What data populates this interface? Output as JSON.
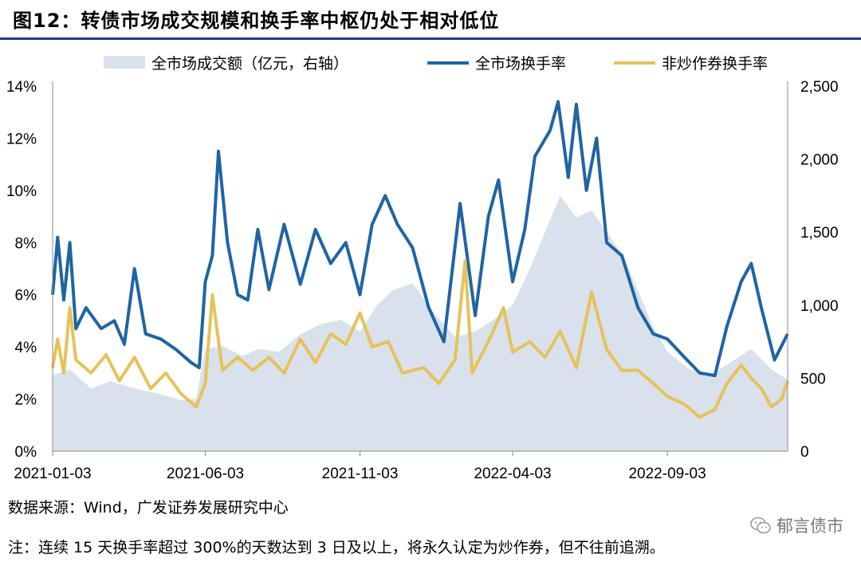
{
  "header": {
    "title": "图12：转债市场成交规模和换手率中枢仍处于相对低位"
  },
  "footer": {
    "source": "数据来源：Wind，广发证券发展研究中心",
    "note": "注：连续 15 天换手率超过 300%的天数达到 3 日及以上，将永久认定为炒作券，但不往前追溯。",
    "watermark": "郁言债市"
  },
  "colors": {
    "area": "#d9e1ec",
    "total": "#1f64a4",
    "nonspec": "#e6c25a"
  },
  "chart_data": {
    "type": "line",
    "x_ticks": [
      "2021-01-03",
      "2021-06-03",
      "2021-11-03",
      "2022-04-03",
      "2022-09-03"
    ],
    "x_range": [
      "2021-01-03",
      "2022-12-31"
    ],
    "y_left": {
      "ticks": [
        "0%",
        "2%",
        "4%",
        "6%",
        "8%",
        "10%",
        "12%",
        "14%"
      ],
      "range": [
        0,
        14
      ],
      "unit": "%"
    },
    "y_right": {
      "ticks": [
        "0",
        "500",
        "1,000",
        "1,500",
        "2,000",
        "2,500"
      ],
      "range": [
        0,
        2500
      ]
    },
    "legend": [
      "全市场成交额（亿元，右轴）",
      "全市场换手率",
      "非炒作券换手率"
    ],
    "series": [
      {
        "name": "全市场成交额（亿元，右轴）",
        "type": "area",
        "axis": "right",
        "points": [
          [
            "2021-01-03",
            520
          ],
          [
            "2021-01-20",
            560
          ],
          [
            "2021-02-10",
            430
          ],
          [
            "2021-03-01",
            480
          ],
          [
            "2021-03-25",
            430
          ],
          [
            "2021-04-20",
            390
          ],
          [
            "2021-05-10",
            350
          ],
          [
            "2021-05-25",
            360
          ],
          [
            "2021-06-03",
            700
          ],
          [
            "2021-06-20",
            720
          ],
          [
            "2021-07-10",
            650
          ],
          [
            "2021-07-25",
            700
          ],
          [
            "2021-08-15",
            680
          ],
          [
            "2021-09-05",
            800
          ],
          [
            "2021-09-25",
            870
          ],
          [
            "2021-10-15",
            900
          ],
          [
            "2021-11-03",
            820
          ],
          [
            "2021-11-20",
            1000
          ],
          [
            "2021-12-05",
            1100
          ],
          [
            "2021-12-25",
            1150
          ],
          [
            "2022-01-15",
            950
          ],
          [
            "2022-02-05",
            780
          ],
          [
            "2022-02-25",
            820
          ],
          [
            "2022-03-15",
            900
          ],
          [
            "2022-04-03",
            1000
          ],
          [
            "2022-04-20",
            1250
          ],
          [
            "2022-05-05",
            1500
          ],
          [
            "2022-05-20",
            1750
          ],
          [
            "2022-06-05",
            1600
          ],
          [
            "2022-06-20",
            1650
          ],
          [
            "2022-07-05",
            1500
          ],
          [
            "2022-07-20",
            1350
          ],
          [
            "2022-08-05",
            1100
          ],
          [
            "2022-08-20",
            850
          ],
          [
            "2022-09-03",
            680
          ],
          [
            "2022-09-25",
            560
          ],
          [
            "2022-10-15",
            520
          ],
          [
            "2022-11-05",
            610
          ],
          [
            "2022-11-25",
            700
          ],
          [
            "2022-12-15",
            560
          ],
          [
            "2022-12-31",
            490
          ]
        ]
      },
      {
        "name": "全市场换手率",
        "type": "line",
        "axis": "left",
        "points": [
          [
            "2021-01-03",
            6.0
          ],
          [
            "2021-01-08",
            8.2
          ],
          [
            "2021-01-14",
            5.8
          ],
          [
            "2021-01-20",
            8.0
          ],
          [
            "2021-01-26",
            4.7
          ],
          [
            "2021-02-05",
            5.5
          ],
          [
            "2021-02-20",
            4.7
          ],
          [
            "2021-03-05",
            5.0
          ],
          [
            "2021-03-15",
            4.1
          ],
          [
            "2021-03-25",
            7.0
          ],
          [
            "2021-04-05",
            4.5
          ],
          [
            "2021-04-20",
            4.3
          ],
          [
            "2021-05-05",
            3.9
          ],
          [
            "2021-05-20",
            3.4
          ],
          [
            "2021-05-28",
            3.2
          ],
          [
            "2021-06-03",
            6.5
          ],
          [
            "2021-06-10",
            7.5
          ],
          [
            "2021-06-16",
            11.5
          ],
          [
            "2021-06-25",
            8.0
          ],
          [
            "2021-07-05",
            6.0
          ],
          [
            "2021-07-15",
            5.8
          ],
          [
            "2021-07-25",
            8.5
          ],
          [
            "2021-08-05",
            6.2
          ],
          [
            "2021-08-20",
            8.7
          ],
          [
            "2021-09-05",
            6.4
          ],
          [
            "2021-09-20",
            8.5
          ],
          [
            "2021-10-05",
            7.2
          ],
          [
            "2021-10-20",
            8.0
          ],
          [
            "2021-11-03",
            6.0
          ],
          [
            "2021-11-15",
            8.7
          ],
          [
            "2021-11-28",
            9.8
          ],
          [
            "2021-12-10",
            8.7
          ],
          [
            "2021-12-25",
            7.8
          ],
          [
            "2022-01-10",
            5.5
          ],
          [
            "2022-01-25",
            4.2
          ],
          [
            "2022-02-10",
            9.5
          ],
          [
            "2022-02-25",
            5.2
          ],
          [
            "2022-03-10",
            9.0
          ],
          [
            "2022-03-20",
            10.4
          ],
          [
            "2022-04-03",
            6.5
          ],
          [
            "2022-04-15",
            8.5
          ],
          [
            "2022-04-25",
            11.3
          ],
          [
            "2022-05-10",
            12.3
          ],
          [
            "2022-05-18",
            13.4
          ],
          [
            "2022-05-28",
            10.5
          ],
          [
            "2022-06-05",
            13.3
          ],
          [
            "2022-06-15",
            10.0
          ],
          [
            "2022-06-25",
            12.0
          ],
          [
            "2022-07-05",
            8.0
          ],
          [
            "2022-07-20",
            7.5
          ],
          [
            "2022-08-05",
            5.5
          ],
          [
            "2022-08-20",
            4.5
          ],
          [
            "2022-09-03",
            4.3
          ],
          [
            "2022-09-20",
            3.6
          ],
          [
            "2022-10-05",
            3.0
          ],
          [
            "2022-10-20",
            2.9
          ],
          [
            "2022-11-01",
            4.8
          ],
          [
            "2022-11-15",
            6.5
          ],
          [
            "2022-11-25",
            7.2
          ],
          [
            "2022-12-05",
            5.5
          ],
          [
            "2022-12-18",
            3.5
          ],
          [
            "2022-12-31",
            4.5
          ]
        ]
      },
      {
        "name": "非炒作券换手率",
        "type": "line",
        "axis": "left",
        "points": [
          [
            "2021-01-03",
            3.2
          ],
          [
            "2021-01-08",
            4.3
          ],
          [
            "2021-01-14",
            3.0
          ],
          [
            "2021-01-20",
            5.5
          ],
          [
            "2021-01-26",
            3.5
          ],
          [
            "2021-02-10",
            3.0
          ],
          [
            "2021-02-25",
            3.7
          ],
          [
            "2021-03-10",
            2.7
          ],
          [
            "2021-03-25",
            3.6
          ],
          [
            "2021-04-10",
            2.4
          ],
          [
            "2021-04-25",
            3.0
          ],
          [
            "2021-05-10",
            2.2
          ],
          [
            "2021-05-25",
            1.7
          ],
          [
            "2021-06-03",
            2.6
          ],
          [
            "2021-06-10",
            6.0
          ],
          [
            "2021-06-20",
            3.1
          ],
          [
            "2021-07-05",
            3.6
          ],
          [
            "2021-07-20",
            3.1
          ],
          [
            "2021-08-05",
            3.6
          ],
          [
            "2021-08-20",
            3.0
          ],
          [
            "2021-09-05",
            4.3
          ],
          [
            "2021-09-20",
            3.4
          ],
          [
            "2021-10-05",
            4.5
          ],
          [
            "2021-10-20",
            4.1
          ],
          [
            "2021-11-03",
            5.3
          ],
          [
            "2021-11-15",
            4.0
          ],
          [
            "2021-12-01",
            4.2
          ],
          [
            "2021-12-15",
            3.0
          ],
          [
            "2022-01-05",
            3.2
          ],
          [
            "2022-01-20",
            2.6
          ],
          [
            "2022-02-05",
            3.5
          ],
          [
            "2022-02-15",
            7.3
          ],
          [
            "2022-02-22",
            3.0
          ],
          [
            "2022-03-10",
            4.2
          ],
          [
            "2022-03-25",
            5.5
          ],
          [
            "2022-04-03",
            3.8
          ],
          [
            "2022-04-20",
            4.2
          ],
          [
            "2022-05-05",
            3.6
          ],
          [
            "2022-05-20",
            4.6
          ],
          [
            "2022-06-05",
            3.2
          ],
          [
            "2022-06-20",
            6.1
          ],
          [
            "2022-07-05",
            3.9
          ],
          [
            "2022-07-20",
            3.1
          ],
          [
            "2022-08-05",
            3.1
          ],
          [
            "2022-08-20",
            2.6
          ],
          [
            "2022-09-03",
            2.1
          ],
          [
            "2022-09-20",
            1.8
          ],
          [
            "2022-10-05",
            1.3
          ],
          [
            "2022-10-20",
            1.6
          ],
          [
            "2022-11-01",
            2.6
          ],
          [
            "2022-11-15",
            3.3
          ],
          [
            "2022-11-25",
            2.8
          ],
          [
            "2022-12-05",
            2.4
          ],
          [
            "2022-12-15",
            1.7
          ],
          [
            "2022-12-25",
            2.0
          ],
          [
            "2022-12-31",
            2.7
          ]
        ]
      }
    ]
  }
}
